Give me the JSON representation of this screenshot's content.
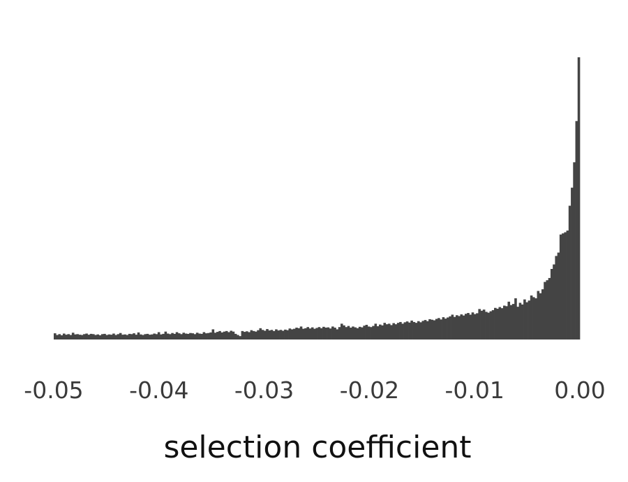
{
  "chart_data": {
    "type": "bar",
    "title": "",
    "xlabel": "selection coefficient",
    "ylabel": "",
    "xlim": [
      -0.05,
      0.0
    ],
    "ylim": [
      0,
      100
    ],
    "xticks": [
      -0.05,
      -0.04,
      -0.03,
      -0.02,
      -0.01,
      0.0
    ],
    "xtick_labels": [
      "-0.05",
      "-0.04",
      "-0.03",
      "-0.02",
      "-0.01",
      "0.00"
    ],
    "yaxis_visible": false,
    "grid": false,
    "bar_color": "#444444",
    "bin_width": 0.0002,
    "series": [
      {
        "values": [
          2.2,
          1.6,
          1.9,
          1.5,
          2.1,
          1.7,
          1.9,
          1.6,
          2.4,
          1.8,
          1.9,
          1.7,
          1.6,
          1.9,
          2.1,
          1.7,
          2.0,
          1.9,
          1.6,
          1.8,
          1.5,
          1.9,
          2.0,
          1.6,
          1.8,
          1.7,
          2.1,
          1.6,
          1.9,
          2.3,
          1.7,
          1.8,
          1.6,
          2.0,
          1.9,
          2.2,
          1.7,
          2.5,
          1.8,
          1.6,
          1.9,
          2.0,
          1.7,
          1.8,
          2.1,
          1.9,
          2.6,
          1.8,
          2.0,
          2.8,
          2.1,
          1.9,
          2.3,
          2.0,
          2.6,
          2.2,
          1.9,
          2.4,
          2.1,
          2.0,
          2.3,
          2.2,
          1.9,
          2.4,
          2.1,
          2.0,
          2.6,
          2.2,
          2.3,
          2.5,
          3.6,
          2.4,
          2.7,
          3.0,
          2.5,
          2.8,
          3.0,
          2.6,
          3.1,
          2.8,
          2.0,
          1.6,
          1.2,
          3.0,
          2.7,
          2.9,
          2.6,
          3.3,
          3.0,
          2.8,
          3.3,
          4.0,
          3.4,
          3.1,
          3.7,
          3.2,
          3.4,
          3.0,
          3.6,
          3.2,
          3.4,
          3.1,
          3.5,
          3.3,
          3.9,
          3.6,
          3.8,
          4.2,
          4.0,
          4.6,
          3.8,
          4.0,
          4.4,
          3.9,
          4.3,
          3.8,
          4.1,
          4.4,
          4.0,
          4.5,
          4.2,
          4.3,
          3.9,
          4.6,
          4.2,
          3.6,
          4.4,
          5.6,
          5.0,
          4.4,
          4.8,
          4.2,
          4.6,
          4.3,
          4.0,
          4.5,
          4.3,
          4.9,
          5.2,
          4.6,
          4.4,
          4.8,
          5.6,
          4.7,
          5.3,
          5.0,
          5.9,
          5.4,
          5.6,
          5.1,
          5.8,
          5.4,
          5.9,
          6.2,
          5.6,
          6.1,
          6.4,
          6.0,
          6.7,
          6.2,
          5.9,
          6.5,
          6.1,
          6.6,
          6.9,
          6.5,
          7.2,
          7.0,
          6.8,
          7.3,
          7.6,
          7.1,
          7.9,
          7.4,
          7.8,
          8.2,
          8.8,
          8.0,
          8.6,
          8.3,
          8.9,
          8.5,
          9.1,
          9.4,
          8.8,
          9.6,
          9.0,
          9.3,
          10.8,
          10.2,
          10.6,
          9.8,
          9.5,
          10.0,
          10.4,
          11.2,
          10.9,
          11.5,
          11.1,
          12.0,
          11.8,
          13.4,
          12.2,
          12.6,
          14.6,
          11.6,
          13.0,
          12.4,
          14.2,
          13.2,
          13.8,
          15.6,
          15.0,
          14.6,
          17.2,
          16.4,
          17.8,
          20.4,
          21.0,
          21.8,
          25.0,
          26.6,
          29.6,
          30.8,
          37.2,
          37.6,
          38.0,
          38.6,
          47.4,
          53.8,
          62.8,
          77.4,
          100.0
        ]
      }
    ]
  }
}
